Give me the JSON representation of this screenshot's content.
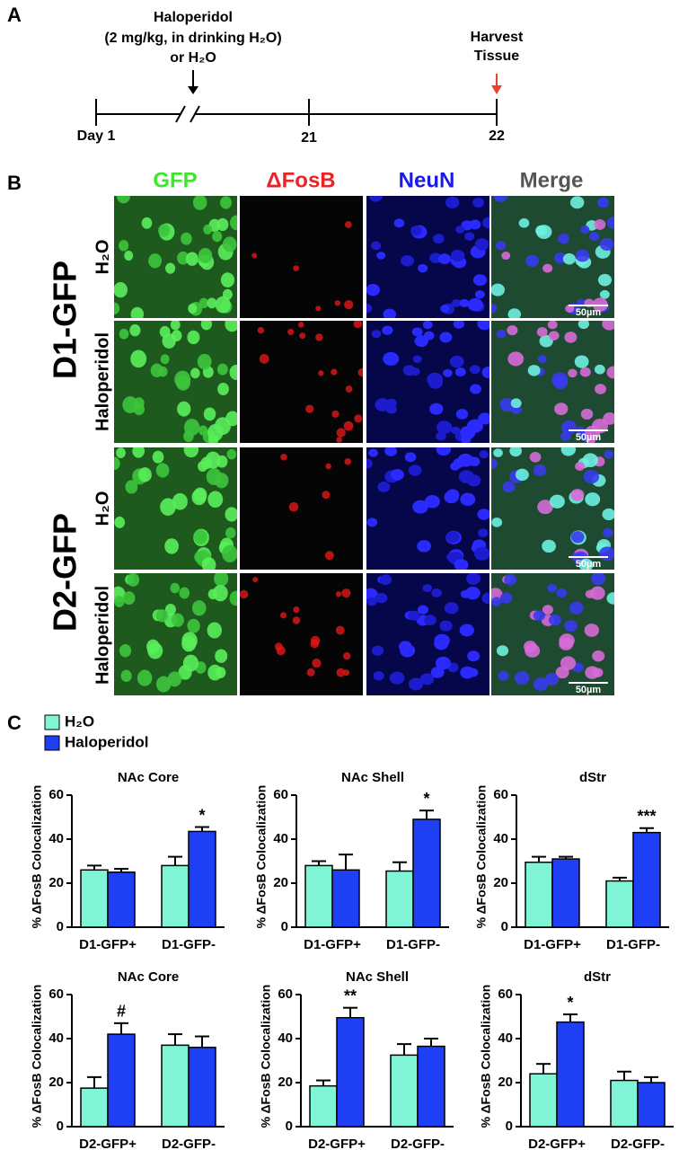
{
  "panel_a": {
    "label": "A",
    "treatment": [
      "Haloperidol",
      "(2 mg/kg, in drinking H₂O)",
      "or H₂O"
    ],
    "harvest": [
      "Harvest",
      "Tissue"
    ],
    "days": [
      "Day 1",
      "21",
      "22"
    ]
  },
  "panel_b": {
    "label": "B",
    "columns": [
      "GFP",
      "ΔFosB",
      "NeuN",
      "Merge"
    ],
    "groups": [
      {
        "label": "D1-GFP",
        "rows": [
          "H₂O",
          "Haloperidol"
        ]
      },
      {
        "label": "D2-GFP",
        "rows": [
          "H₂O",
          "Haloperidol"
        ]
      }
    ],
    "scale_bar": "50µm"
  },
  "panel_c": {
    "label": "C"
  },
  "chart_data": [
    {
      "type": "bar",
      "title": "NAc Core",
      "ylabel": "% ΔFosB Colocalization",
      "categories": [
        "D1-GFP+",
        "D1-GFP-"
      ],
      "series": [
        {
          "name": "H₂O",
          "color": "#7ff5d5",
          "values": [
            26,
            28
          ],
          "errors": [
            2,
            4
          ]
        },
        {
          "name": "Haloperidol",
          "color": "#1f3ff5",
          "values": [
            25,
            43.5
          ],
          "errors": [
            1.5,
            2
          ],
          "annotations": [
            null,
            "*"
          ]
        }
      ],
      "ylim": [
        0,
        60
      ],
      "yticks": [
        0,
        20,
        40,
        60
      ]
    },
    {
      "type": "bar",
      "title": "NAc Shell",
      "ylabel": "% ΔFosB Colocalization",
      "categories": [
        "D1-GFP+",
        "D1-GFP-"
      ],
      "series": [
        {
          "color": "#7ff5d5",
          "values": [
            28,
            25.5
          ],
          "errors": [
            2,
            4
          ]
        },
        {
          "color": "#1f3ff5",
          "values": [
            26,
            49
          ],
          "errors": [
            7,
            4
          ],
          "annotations": [
            null,
            "*"
          ]
        }
      ],
      "ylim": [
        0,
        60
      ],
      "yticks": [
        0,
        20,
        40,
        60
      ]
    },
    {
      "type": "bar",
      "title": "dStr",
      "ylabel": "% ΔFosB Colocalization",
      "categories": [
        "D1-GFP+",
        "D1-GFP-"
      ],
      "series": [
        {
          "color": "#7ff5d5",
          "values": [
            29.5,
            21
          ],
          "errors": [
            2.5,
            1.5
          ]
        },
        {
          "color": "#1f3ff5",
          "values": [
            31,
            43
          ],
          "errors": [
            1,
            2
          ],
          "annotations": [
            null,
            "***"
          ]
        }
      ],
      "ylim": [
        0,
        60
      ],
      "yticks": [
        0,
        20,
        40,
        60
      ]
    },
    {
      "type": "bar",
      "title": "NAc Core",
      "ylabel": "% ΔFosB Colocalization",
      "categories": [
        "D2-GFP+",
        "D2-GFP-"
      ],
      "series": [
        {
          "color": "#7ff5d5",
          "values": [
            17.5,
            37
          ],
          "errors": [
            5,
            5
          ]
        },
        {
          "color": "#1f3ff5",
          "values": [
            42,
            36
          ],
          "errors": [
            5,
            5
          ],
          "annotations": [
            "#",
            null
          ]
        }
      ],
      "ylim": [
        0,
        60
      ],
      "yticks": [
        0,
        20,
        40,
        60
      ]
    },
    {
      "type": "bar",
      "title": "NAc Shell",
      "ylabel": "% ΔFosB Colocalization",
      "categories": [
        "D2-GFP+",
        "D2-GFP-"
      ],
      "series": [
        {
          "color": "#7ff5d5",
          "values": [
            18.5,
            32.5
          ],
          "errors": [
            2.5,
            5
          ]
        },
        {
          "color": "#1f3ff5",
          "values": [
            49.5,
            36.5
          ],
          "errors": [
            4.5,
            3.5
          ],
          "annotations": [
            "**",
            null
          ]
        }
      ],
      "ylim": [
        0,
        60
      ],
      "yticks": [
        0,
        20,
        40,
        60
      ]
    },
    {
      "type": "bar",
      "title": "dStr",
      "ylabel": "% ΔFosB Colocalization",
      "categories": [
        "D2-GFP+",
        "D2-GFP-"
      ],
      "series": [
        {
          "color": "#7ff5d5",
          "values": [
            24,
            21
          ],
          "errors": [
            4.5,
            4
          ]
        },
        {
          "color": "#1f3ff5",
          "values": [
            47.5,
            20
          ],
          "errors": [
            3.5,
            2.5
          ],
          "annotations": [
            "*",
            null
          ]
        }
      ],
      "ylim": [
        0,
        60
      ],
      "yticks": [
        0,
        20,
        40,
        60
      ]
    }
  ]
}
